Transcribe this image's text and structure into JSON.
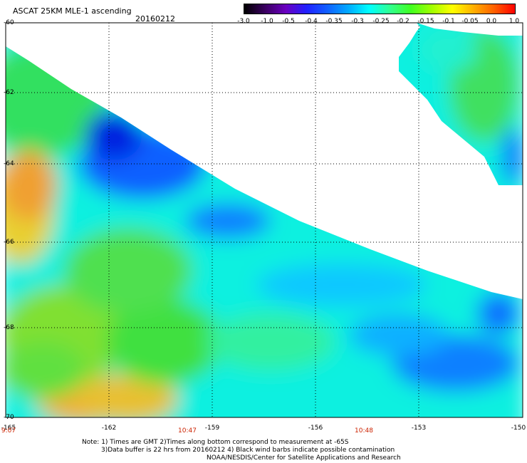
{
  "header": {
    "title": "ASCAT 25KM MLE-1 ascending",
    "date": "20160212"
  },
  "colorbar": {
    "ticks": [
      "-3.0",
      "-1.0",
      "-0.5",
      "-0.4",
      "-0.35",
      "-0.3",
      "-0.25",
      "-0.2",
      "-0.15",
      "-0.1",
      "-0.05",
      "0.0",
      "1.0"
    ],
    "colors": [
      "#000000",
      "#3a0060",
      "#6a00c0",
      "#2020ff",
      "#1060ff",
      "#00aaff",
      "#00ffff",
      "#30ff90",
      "#40ff20",
      "#a0ff00",
      "#ffff00",
      "#ffb000",
      "#ff6000",
      "#ff0000"
    ]
  },
  "axes": {
    "lat_labels": [
      "-60",
      "-62",
      "-64",
      "-66",
      "-68",
      "-70"
    ],
    "lon_labels": [
      "-165",
      "-162",
      "-159",
      "-156",
      "-153",
      "-150"
    ],
    "time_labels": [
      "9:07",
      "10:47",
      "10:48"
    ]
  },
  "notes": {
    "line1": "Note: 1) Times are GMT 2)Times along bottom correspond to measurement at -65S",
    "line2": "3)Data buffer is 22 hrs from 20160212 4) Black wind barbs indicate possible contamination",
    "line3": "NOAA/NESDIS/Center for Satellite Applications and Research"
  }
}
